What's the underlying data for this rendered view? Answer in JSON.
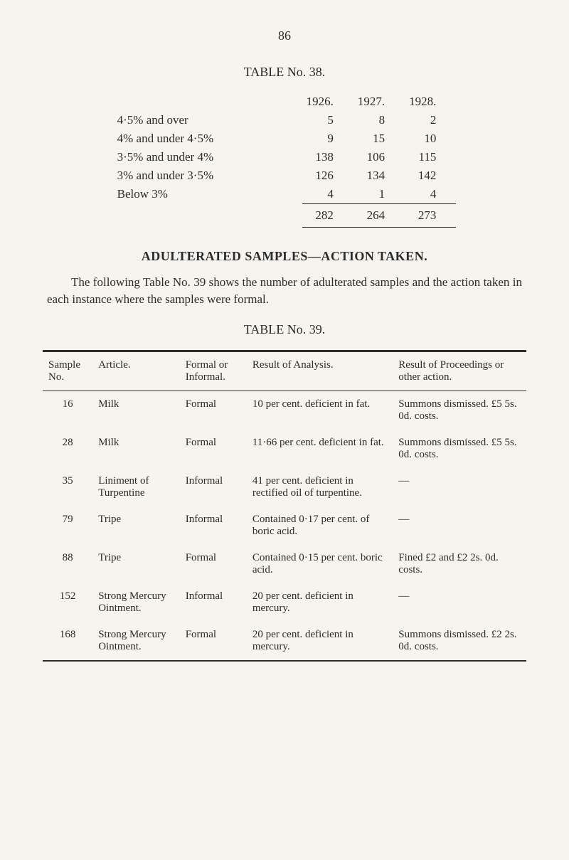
{
  "page_number": "86",
  "table38": {
    "title": "TABLE No. 38.",
    "year_headers": [
      "1926.",
      "1927.",
      "1928."
    ],
    "rows": [
      {
        "label": "4·5% and over",
        "values": [
          "5",
          "8",
          "2"
        ]
      },
      {
        "label": "4% and under 4·5%",
        "values": [
          "9",
          "15",
          "10"
        ]
      },
      {
        "label": "3·5% and under 4%",
        "values": [
          "138",
          "106",
          "115"
        ]
      },
      {
        "label": "3% and under 3·5%",
        "values": [
          "126",
          "134",
          "142"
        ]
      },
      {
        "label": "Below 3%",
        "values": [
          "4",
          "1",
          "4"
        ]
      }
    ],
    "totals": [
      "282",
      "264",
      "273"
    ]
  },
  "section": {
    "heading": "ADULTERATED SAMPLES—ACTION TAKEN.",
    "paragraph": "The following Table No. 39 shows the number of adulterated samples and the action taken in each instance where the samples were formal."
  },
  "table39": {
    "title": "TABLE No. 39.",
    "columns": [
      "Sample No.",
      "Article.",
      "Formal or Informal.",
      "Result of Analysis.",
      "Result of Proceedings or other action."
    ],
    "rows": [
      {
        "no": "16",
        "article": "Milk",
        "formal": "Formal",
        "result": "10 per cent. deficient in fat.",
        "proceed": "Summons dismissed. £5 5s. 0d. costs."
      },
      {
        "no": "28",
        "article": "Milk",
        "formal": "Formal",
        "result": "11·66 per cent. deficient in fat.",
        "proceed": "Summons dismissed. £5 5s. 0d. costs."
      },
      {
        "no": "35",
        "article": "Liniment of Turpentine",
        "formal": "Informal",
        "result": "41 per cent. deficient in rectified oil of turpentine.",
        "proceed": "—"
      },
      {
        "no": "79",
        "article": "Tripe",
        "formal": "Informal",
        "result": "Contained 0·17 per cent. of boric acid.",
        "proceed": "—"
      },
      {
        "no": "88",
        "article": "Tripe",
        "formal": "Formal",
        "result": "Contained 0·15 per cent. boric acid.",
        "proceed": "Fined £2 and £2 2s. 0d. costs."
      },
      {
        "no": "152",
        "article": "Strong Mercury Ointment.",
        "formal": "Informal",
        "result": "20 per cent. deficient in mercury.",
        "proceed": "—"
      },
      {
        "no": "168",
        "article": "Strong Mercury Ointment.",
        "formal": "Formal",
        "result": "20 per cent. deficient in mercury.",
        "proceed": "Summons dismissed. £2 2s. 0d. costs."
      }
    ]
  },
  "colors": {
    "background": "#f6f4ee",
    "text": "#2b2b2b",
    "rule": "#2b2b2b"
  }
}
